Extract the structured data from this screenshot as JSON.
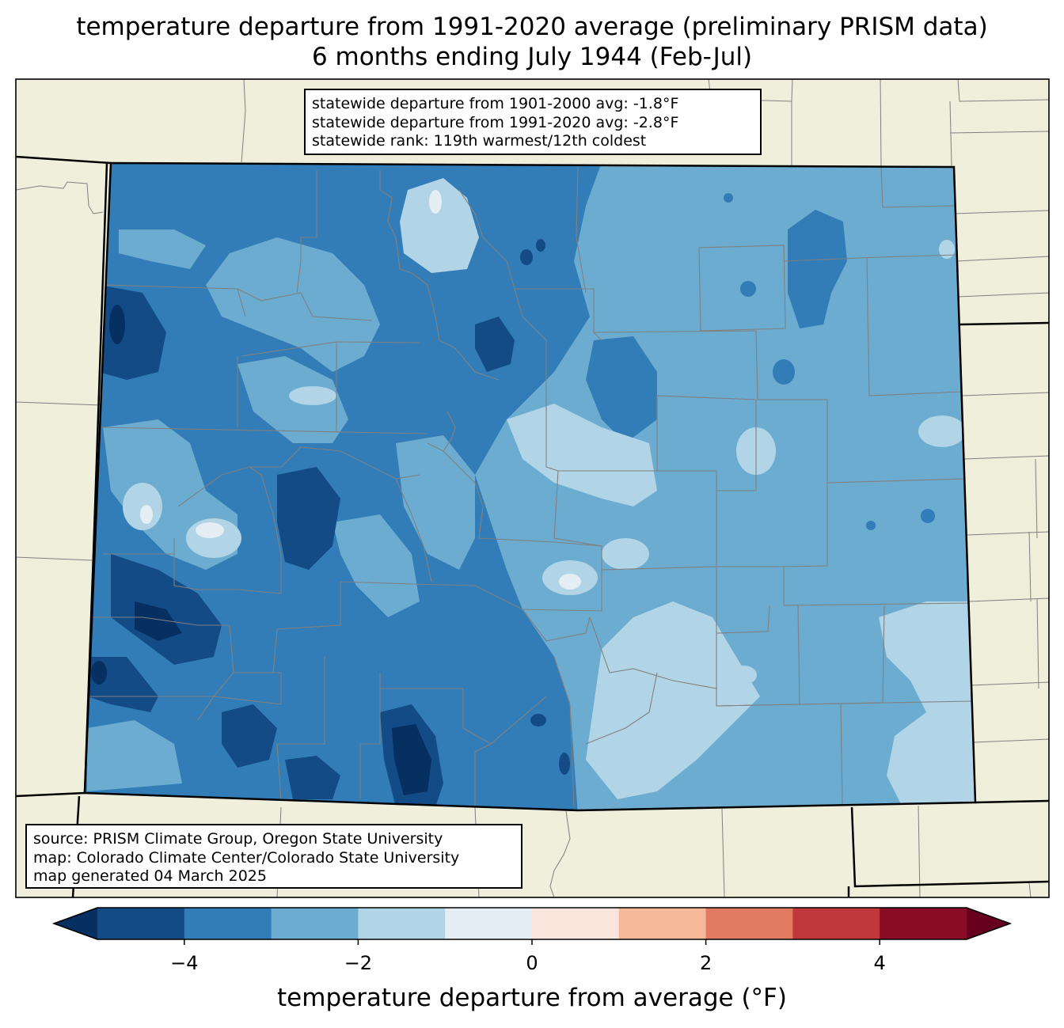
{
  "title": {
    "line1": "temperature departure from 1991-2020 average (preliminary PRISM data)",
    "line2": "6 months ending July 1944 (Feb-Jul)"
  },
  "stats": {
    "line1": "statewide departure from 1901-2000 avg: -1.8°F",
    "line2": "statewide departure from 1991-2020 avg: -2.8°F",
    "line3": "statewide rank: 119th warmest/12th coldest"
  },
  "source": {
    "line1": "source: PRISM Climate Group, Oregon State University",
    "line2": "map: Colorado Climate Center/Colorado State University",
    "line3": "map generated 04 March 2025"
  },
  "colorbar": {
    "label": "temperature departure from average (°F)",
    "ticks": [
      {
        "value": -4,
        "label": "−4"
      },
      {
        "value": -2,
        "label": "−2"
      },
      {
        "value": 0,
        "label": "0"
      },
      {
        "value": 2,
        "label": "2"
      },
      {
        "value": 4,
        "label": "4"
      }
    ],
    "range": [
      -5,
      5
    ],
    "bins": [
      {
        "from": -5,
        "to": -4,
        "color": "#134b87"
      },
      {
        "from": -4,
        "to": -3,
        "color": "#327db7"
      },
      {
        "from": -3,
        "to": -2,
        "color": "#6bacd0"
      },
      {
        "from": -2,
        "to": -1,
        "color": "#b1d5e7"
      },
      {
        "from": -1,
        "to": 0,
        "color": "#e4eef4"
      },
      {
        "from": 0,
        "to": 1,
        "color": "#fae6dc"
      },
      {
        "from": 1,
        "to": 2,
        "color": "#f7b799"
      },
      {
        "from": 2,
        "to": 3,
        "color": "#e07b61"
      },
      {
        "from": 3,
        "to": 4,
        "color": "#c0383b"
      },
      {
        "from": 4,
        "to": 5,
        "color": "#8a0b25"
      }
    ],
    "under_color": "#053061",
    "over_color": "#67001f"
  },
  "colors": {
    "land": "#efefdc",
    "county_border": "#808080",
    "state_border": "#000000"
  }
}
